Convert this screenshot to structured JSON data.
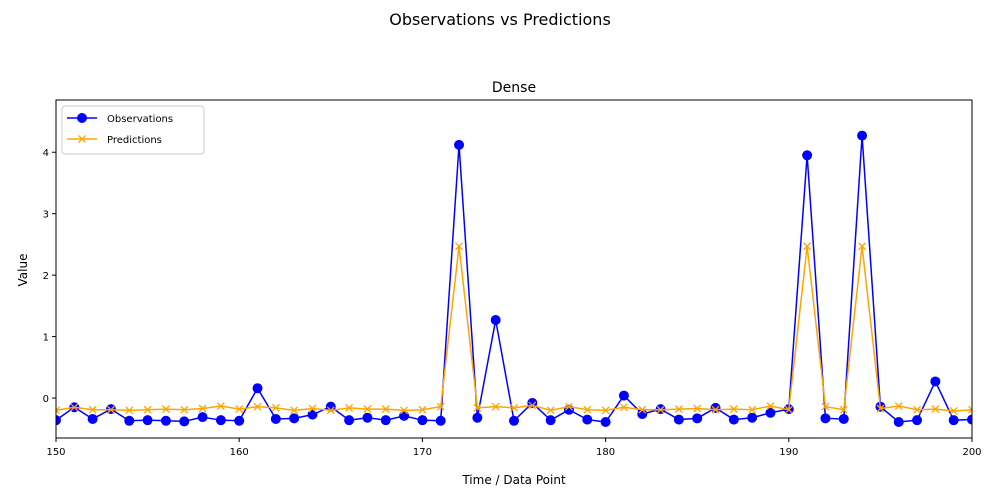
{
  "chart_data": {
    "type": "line",
    "suptitle": "Observations vs Predictions",
    "title": "Dense",
    "xlabel": "Time / Data Point",
    "ylabel": "Value",
    "xlim": [
      150,
      200
    ],
    "ylim": [
      -0.65,
      4.85
    ],
    "xticks": [
      150,
      160,
      170,
      180,
      190,
      200
    ],
    "yticks": [
      0,
      1,
      2,
      3,
      4
    ],
    "legend_position": "upper-left",
    "grid": false,
    "x": [
      150,
      151,
      152,
      153,
      154,
      155,
      156,
      157,
      158,
      159,
      160,
      161,
      162,
      163,
      164,
      165,
      166,
      167,
      168,
      169,
      170,
      171,
      172,
      173,
      174,
      175,
      176,
      177,
      178,
      179,
      180,
      181,
      182,
      183,
      184,
      185,
      186,
      187,
      188,
      189,
      190,
      191,
      192,
      193,
      194,
      195,
      196,
      197,
      198,
      199,
      200
    ],
    "series": [
      {
        "name": "Observations",
        "color": "#0000ff",
        "marker": "circle",
        "values": [
          -0.36,
          -0.15,
          -0.34,
          -0.18,
          -0.37,
          -0.36,
          -0.37,
          -0.38,
          -0.31,
          -0.36,
          -0.37,
          0.16,
          -0.34,
          -0.33,
          -0.27,
          -0.14,
          -0.36,
          -0.32,
          -0.36,
          -0.29,
          -0.36,
          -0.37,
          4.12,
          -0.32,
          1.27,
          -0.37,
          -0.08,
          -0.36,
          -0.19,
          -0.35,
          -0.39,
          0.04,
          -0.26,
          -0.18,
          -0.35,
          -0.33,
          -0.16,
          -0.35,
          -0.32,
          -0.24,
          -0.18,
          3.95,
          -0.33,
          -0.34,
          4.27,
          -0.14,
          -0.39,
          -0.36,
          0.27,
          -0.36,
          -0.35
        ]
      },
      {
        "name": "Predictions",
        "color": "#ffa500",
        "marker": "x",
        "values": [
          -0.2,
          -0.15,
          -0.19,
          -0.19,
          -0.2,
          -0.19,
          -0.18,
          -0.19,
          -0.17,
          -0.13,
          -0.18,
          -0.14,
          -0.16,
          -0.2,
          -0.17,
          -0.2,
          -0.16,
          -0.18,
          -0.18,
          -0.2,
          -0.19,
          -0.14,
          2.47,
          -0.16,
          -0.14,
          -0.16,
          -0.12,
          -0.2,
          -0.14,
          -0.19,
          -0.2,
          -0.15,
          -0.19,
          -0.19,
          -0.18,
          -0.17,
          -0.19,
          -0.18,
          -0.19,
          -0.13,
          -0.19,
          2.47,
          -0.14,
          -0.19,
          2.47,
          -0.17,
          -0.13,
          -0.19,
          -0.18,
          -0.21,
          -0.19
        ]
      }
    ]
  }
}
